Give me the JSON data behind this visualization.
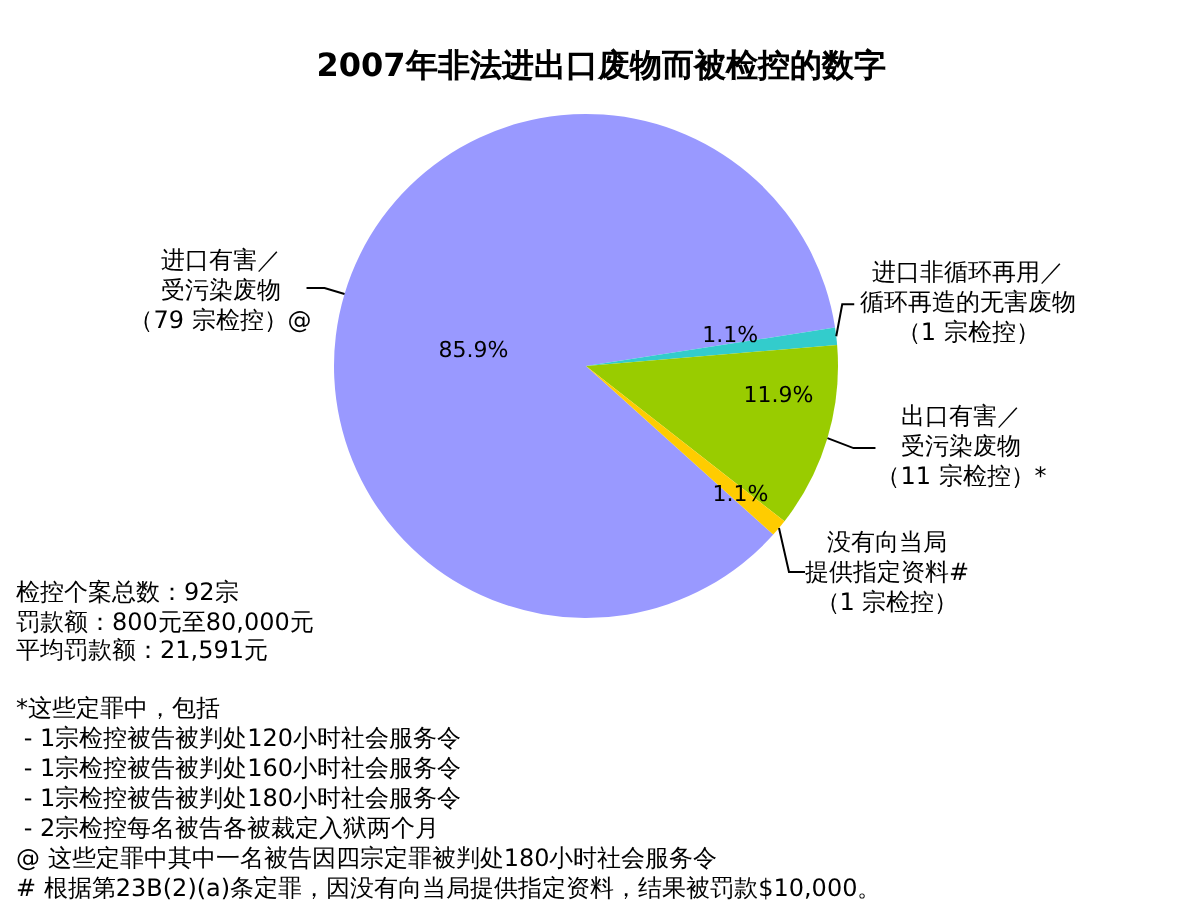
{
  "chart_data": {
    "type": "pie",
    "title": "2007年非法进出口废物而被检控的数字",
    "categories": [
      "进口有害／受污染废物（79 宗检控）@",
      "进口非循环再用／循环再造的无害废物（1 宗检控）",
      "出口有害／受污染废物（11 宗检控）*",
      "没有向当局提供指定资料#（1 宗检控）"
    ],
    "values": [
      85.9,
      1.1,
      11.9,
      1.1
    ],
    "colors": [
      "#9999ff",
      "#33cccc",
      "#99cc00",
      "#ffcc00"
    ],
    "value_labels": [
      "85.9%",
      "1.1%",
      "11.9%",
      "1.1%"
    ],
    "annotations": [
      "检控个案总数：92宗",
      "罚款额：800元至80,000元",
      "平均罚款额：21,591元",
      "*这些定罪中，包括",
      " - 1宗检控被告被判处120小时社会服务令",
      " - 1宗检控被告被判处160小时社会服务令",
      " - 1宗检控被告被判处180小时社会服务令",
      " - 2宗检控每名被告各被裁定入狱两个月",
      "@ 这些定罪中其中一名被告因四宗定罪被判处180小时社会服务令",
      "# 根据第23B(2)(a)条定罪，因没有向当局提供指定资料，结果被罚款$10,000。"
    ]
  }
}
